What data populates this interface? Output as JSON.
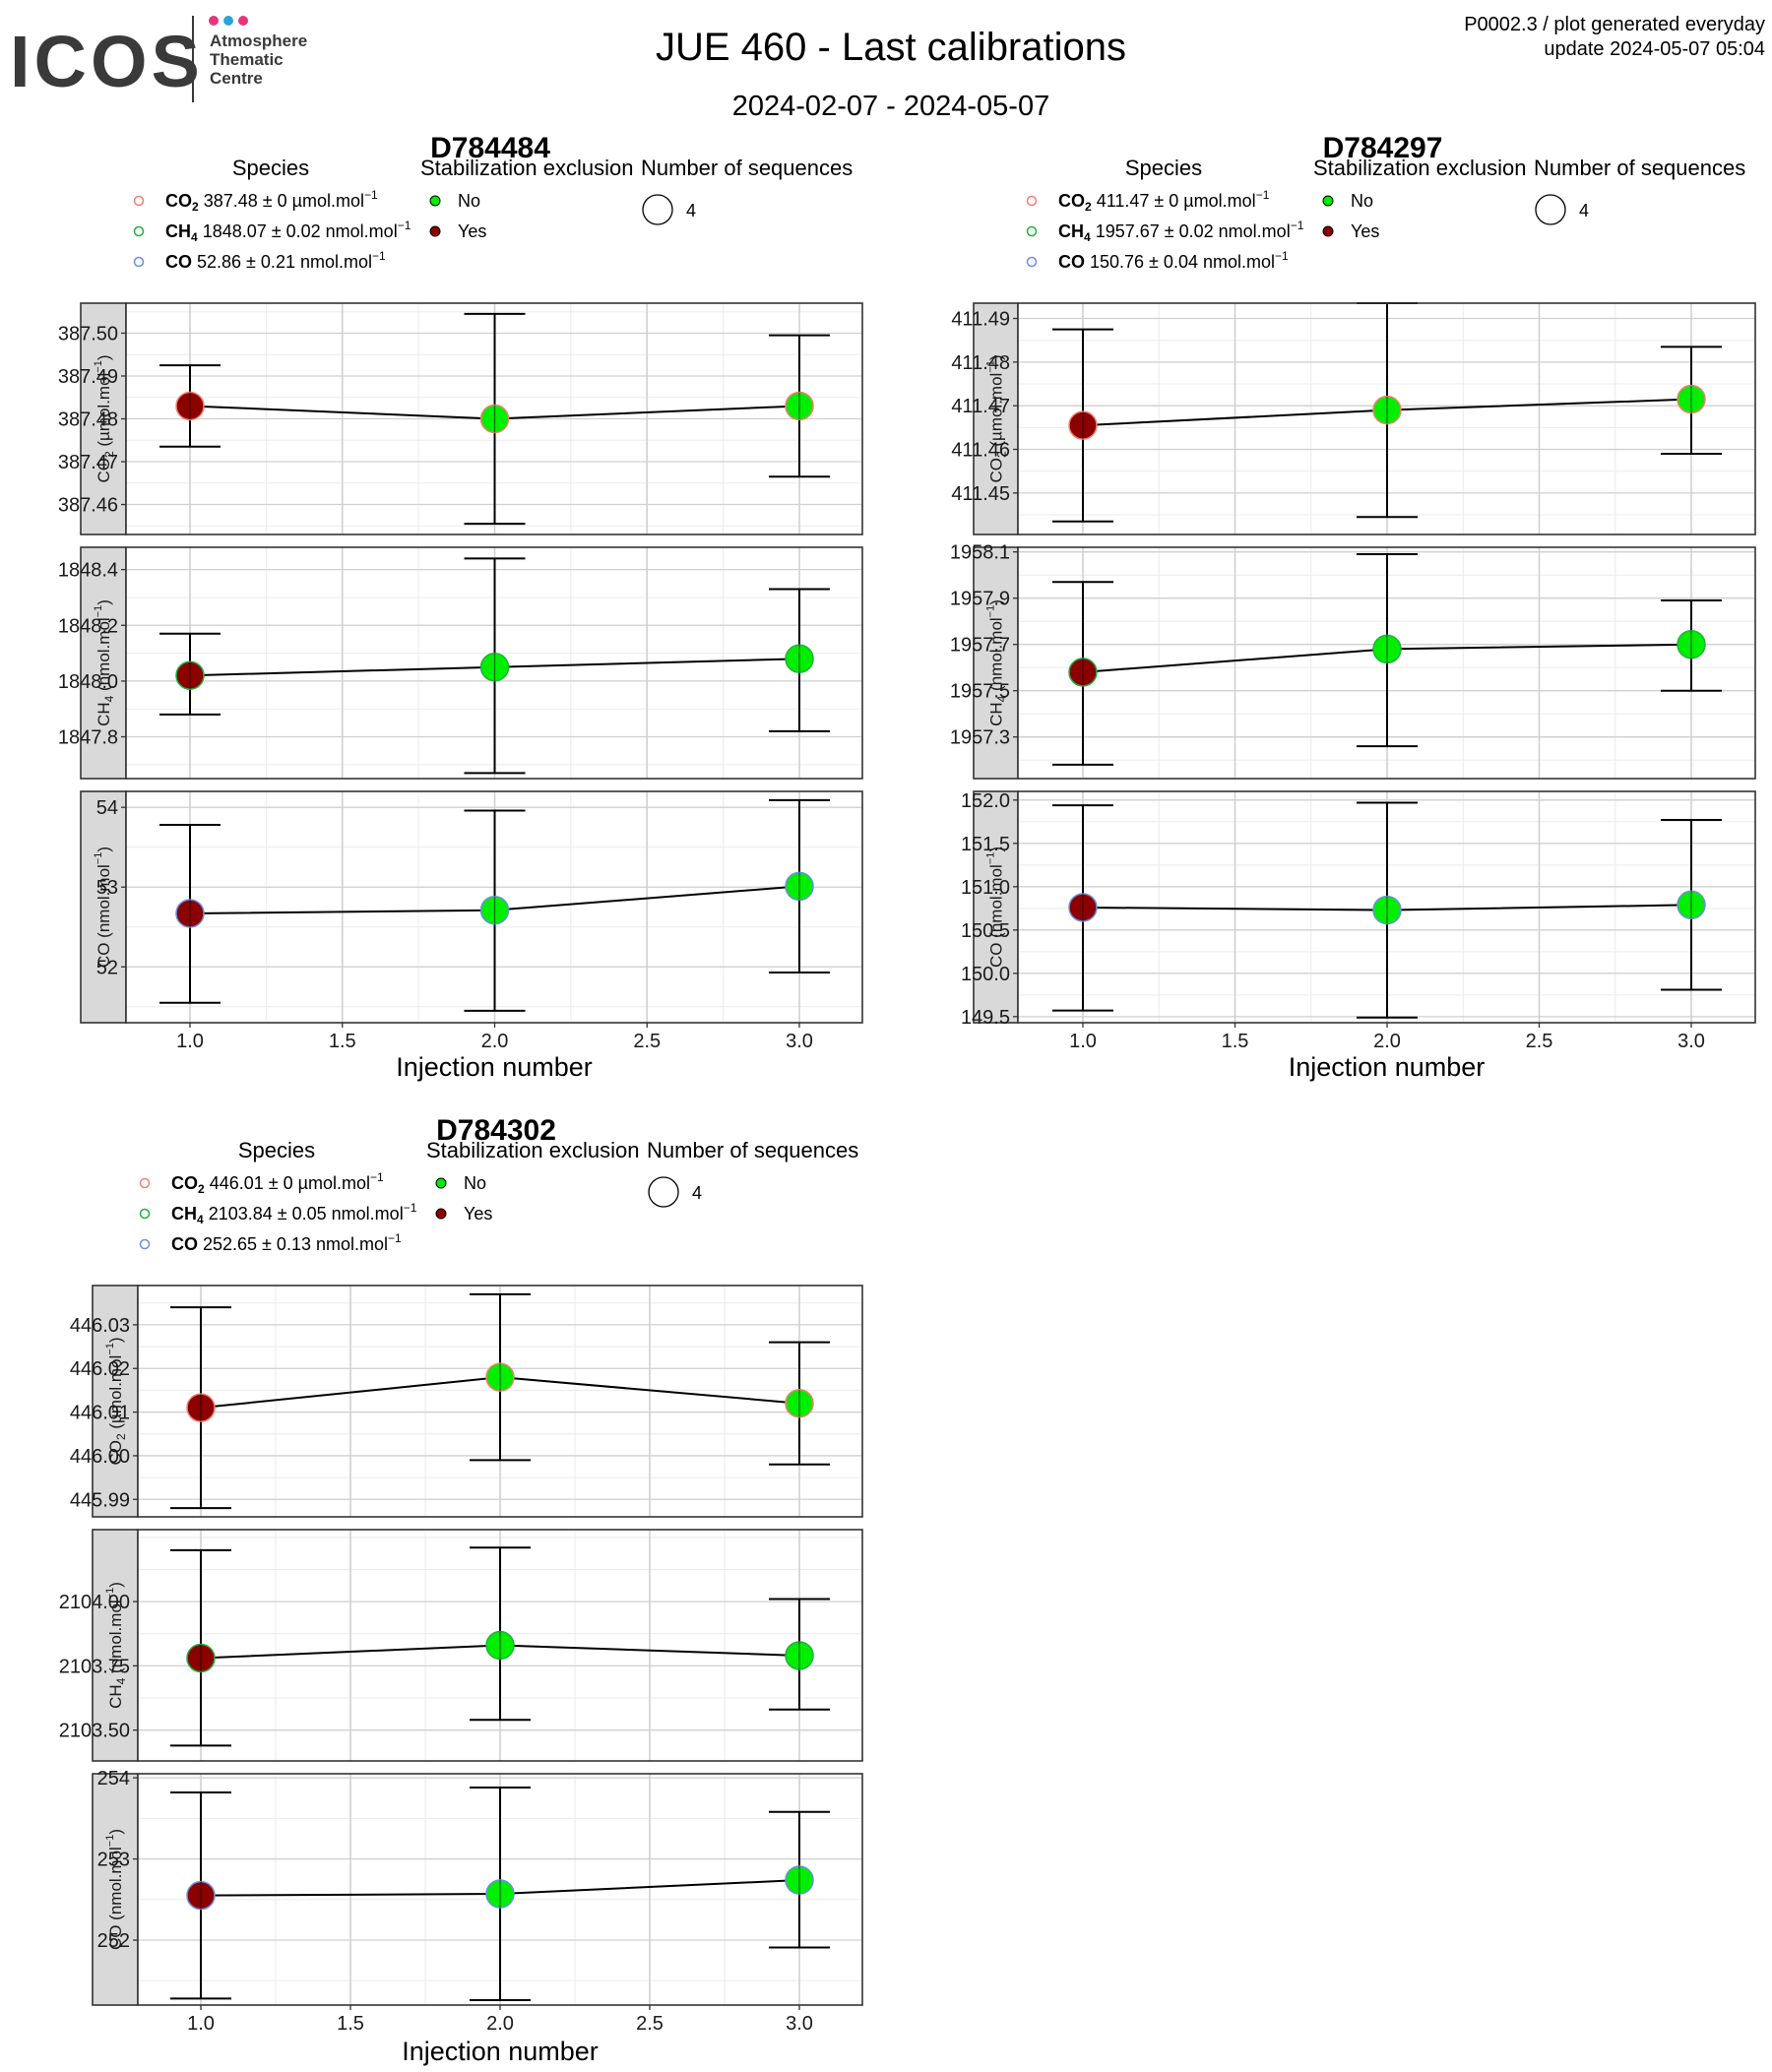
{
  "header": {
    "logo_text": "ICOS",
    "logo_sub": [
      "Atmosphere",
      "Thematic",
      "Centre"
    ],
    "title": "JUE 460 - Last calibrations",
    "subtitle": "2024-02-07 - 2024-05-07",
    "meta_line1": "P0002.3 / plot generated everyday",
    "meta_line2": "update  2024-05-07 05:04"
  },
  "colors": {
    "no": "#00ee00",
    "yes": "#8b0000",
    "co2_ring": "#f08070",
    "ch4_ring": "#20b040",
    "co_ring": "#6a8fe0",
    "strip_fill": "#d9d9d9",
    "grid_major": "#d0d0d0",
    "grid_minor": "#ebebeb"
  },
  "legend_titles": {
    "species": "Species",
    "stabilization": "Stabilization exclusion",
    "sequences": "Number of sequences"
  },
  "legend_labels": {
    "no": "No",
    "yes": "Yes",
    "sequences_count": "4"
  },
  "chart_data": [
    {
      "type": "scatter",
      "title": "D784484",
      "xlabel": "Injection number",
      "x_ticks": [
        "1.0",
        "1.5",
        "2.0",
        "2.5",
        "3.0"
      ],
      "xlim": [
        0.8,
        3.2
      ],
      "species_legend": [
        {
          "name": "CO2",
          "name_sub": "2",
          "value": "387.48 ± 0 µmol.mol",
          "ring": "co2"
        },
        {
          "name": "CH4",
          "name_sub": "4",
          "value": "1848.07 ± 0.02 nmol.mol",
          "ring": "ch4"
        },
        {
          "name": "CO",
          "name_sub": "",
          "value": "52.86 ± 0.21 nmol.mol",
          "ring": "co"
        }
      ],
      "panels": [
        {
          "strip": "CO2 (µmol.mol-1)",
          "ylim": [
            387.453,
            387.507
          ],
          "yticks": [
            387.46,
            387.47,
            387.48,
            387.49,
            387.5
          ],
          "tick_labels": [
            "387.46",
            "387.47",
            "387.48",
            "387.49",
            "387.50"
          ],
          "points": [
            {
              "x": 1,
              "y": 387.483,
              "lo": 387.4735,
              "hi": 387.4925,
              "excluded": true
            },
            {
              "x": 2,
              "y": 387.48,
              "lo": 387.4555,
              "hi": 387.5045,
              "excluded": false
            },
            {
              "x": 3,
              "y": 387.483,
              "lo": 387.4665,
              "hi": 387.4995,
              "excluded": false
            }
          ]
        },
        {
          "strip": "CH4 (nmol.mol-1)",
          "ylim": [
            1847.65,
            1848.48
          ],
          "yticks": [
            1847.8,
            1848.0,
            1848.2,
            1848.4
          ],
          "tick_labels": [
            "1847.8",
            "1848.0",
            "1848.2",
            "1848.4"
          ],
          "points": [
            {
              "x": 1,
              "y": 1848.02,
              "lo": 1847.88,
              "hi": 1848.17,
              "excluded": true
            },
            {
              "x": 2,
              "y": 1848.05,
              "lo": 1847.67,
              "hi": 1848.44,
              "excluded": false
            },
            {
              "x": 3,
              "y": 1848.08,
              "lo": 1847.82,
              "hi": 1848.33,
              "excluded": false
            }
          ]
        },
        {
          "strip": "CO (nmol.mol-1)",
          "ylim": [
            51.3,
            54.2
          ],
          "yticks": [
            52,
            53,
            54
          ],
          "tick_labels": [
            "52",
            "53",
            "54"
          ],
          "points": [
            {
              "x": 1,
              "y": 52.67,
              "lo": 51.55,
              "hi": 53.78,
              "excluded": true
            },
            {
              "x": 2,
              "y": 52.71,
              "lo": 51.45,
              "hi": 53.96,
              "excluded": false
            },
            {
              "x": 3,
              "y": 53.01,
              "lo": 51.93,
              "hi": 54.09,
              "excluded": false
            }
          ]
        }
      ]
    },
    {
      "type": "scatter",
      "title": "D784297",
      "xlabel": "Injection number",
      "x_ticks": [
        "1.0",
        "1.5",
        "2.0",
        "2.5",
        "3.0"
      ],
      "xlim": [
        0.8,
        3.2
      ],
      "species_legend": [
        {
          "name": "CO2",
          "name_sub": "2",
          "value": "411.47 ± 0 µmol.mol",
          "ring": "co2"
        },
        {
          "name": "CH4",
          "name_sub": "4",
          "value": "1957.67 ± 0.02 nmol.mol",
          "ring": "ch4"
        },
        {
          "name": "CO",
          "name_sub": "",
          "value": "150.76 ± 0.04 nmol.mol",
          "ring": "co"
        }
      ],
      "panels": [
        {
          "strip": "CO2 (µmol.mol-1)",
          "ylim": [
            411.4405,
            411.4935
          ],
          "yticks": [
            411.45,
            411.46,
            411.47,
            411.48,
            411.49
          ],
          "tick_labels": [
            "411.45",
            "411.46",
            "411.47",
            "411.48",
            "411.49"
          ],
          "points": [
            {
              "x": 1,
              "y": 411.4655,
              "lo": 411.4435,
              "hi": 411.4875,
              "excluded": true
            },
            {
              "x": 2,
              "y": 411.469,
              "lo": 411.4445,
              "hi": 411.4935,
              "excluded": false
            },
            {
              "x": 3,
              "y": 411.4715,
              "lo": 411.459,
              "hi": 411.4835,
              "excluded": false
            }
          ]
        },
        {
          "strip": "CH4 (nmol.mol-1)",
          "ylim": [
            1957.12,
            1958.12
          ],
          "yticks": [
            1957.3,
            1957.5,
            1957.7,
            1957.9,
            1958.1
          ],
          "tick_labels": [
            "1957.3",
            "1957.5",
            "1957.7",
            "1957.9",
            "1958.1"
          ],
          "points": [
            {
              "x": 1,
              "y": 1957.58,
              "lo": 1957.18,
              "hi": 1957.97,
              "excluded": true
            },
            {
              "x": 2,
              "y": 1957.68,
              "lo": 1957.26,
              "hi": 1958.09,
              "excluded": false
            },
            {
              "x": 3,
              "y": 1957.7,
              "lo": 1957.5,
              "hi": 1957.89,
              "excluded": false
            }
          ]
        },
        {
          "strip": "CO (nmol.mol-1)",
          "ylim": [
            149.43,
            152.1
          ],
          "yticks": [
            149.5,
            150.0,
            150.5,
            151.0,
            151.5,
            152.0
          ],
          "tick_labels": [
            "149.5",
            "150.0",
            "150.5",
            "151.0",
            "151.5",
            "152.0"
          ],
          "points": [
            {
              "x": 1,
              "y": 150.76,
              "lo": 149.57,
              "hi": 151.94,
              "excluded": true
            },
            {
              "x": 2,
              "y": 150.73,
              "lo": 149.49,
              "hi": 151.97,
              "excluded": false
            },
            {
              "x": 3,
              "y": 150.79,
              "lo": 149.81,
              "hi": 151.77,
              "excluded": false
            }
          ]
        }
      ]
    },
    {
      "type": "scatter",
      "title": "D784302",
      "xlabel": "Injection number",
      "x_ticks": [
        "1.0",
        "1.5",
        "2.0",
        "2.5",
        "3.0"
      ],
      "xlim": [
        0.8,
        3.2
      ],
      "species_legend": [
        {
          "name": "CO2",
          "name_sub": "2",
          "value": "446.01 ± 0 µmol.mol",
          "ring": "co2"
        },
        {
          "name": "CH4",
          "name_sub": "4",
          "value": "2103.84 ± 0.05 nmol.mol",
          "ring": "ch4"
        },
        {
          "name": "CO",
          "name_sub": "",
          "value": "252.65 ± 0.13 nmol.mol",
          "ring": "co"
        }
      ],
      "panels": [
        {
          "strip": "CO2 (µmol.mol-1)",
          "ylim": [
            445.986,
            446.039
          ],
          "yticks": [
            445.99,
            446.0,
            446.01,
            446.02,
            446.03
          ],
          "tick_labels": [
            "445.99",
            "446.00",
            "446.01",
            "446.02",
            "446.03"
          ],
          "points": [
            {
              "x": 1,
              "y": 446.011,
              "lo": 445.988,
              "hi": 446.034,
              "excluded": true
            },
            {
              "x": 2,
              "y": 446.018,
              "lo": 445.999,
              "hi": 446.037,
              "excluded": false
            },
            {
              "x": 3,
              "y": 446.012,
              "lo": 445.998,
              "hi": 446.026,
              "excluded": false
            }
          ]
        },
        {
          "strip": "CH4 (nmol.mol-1)",
          "ylim": [
            2103.38,
            2104.28
          ],
          "yticks": [
            2103.5,
            2103.75,
            2104.0
          ],
          "tick_labels": [
            "2103.50",
            "2103.75",
            "2104.00"
          ],
          "points": [
            {
              "x": 1,
              "y": 2103.78,
              "lo": 2103.44,
              "hi": 2104.2,
              "excluded": true
            },
            {
              "x": 2,
              "y": 2103.83,
              "lo": 2103.54,
              "hi": 2104.21,
              "excluded": false
            },
            {
              "x": 3,
              "y": 2103.79,
              "lo": 2103.58,
              "hi": 2104.01,
              "excluded": false
            }
          ]
        },
        {
          "strip": "CO (nmol.mol-1)",
          "ylim": [
            251.2,
            254.05
          ],
          "yticks": [
            252,
            253,
            254
          ],
          "tick_labels": [
            "252",
            "253",
            "254"
          ],
          "points": [
            {
              "x": 1,
              "y": 252.55,
              "lo": 251.28,
              "hi": 253.82,
              "excluded": true
            },
            {
              "x": 2,
              "y": 252.57,
              "lo": 251.26,
              "hi": 253.88,
              "excluded": false
            },
            {
              "x": 3,
              "y": 252.74,
              "lo": 251.91,
              "hi": 253.58,
              "excluded": false
            }
          ]
        }
      ]
    }
  ]
}
